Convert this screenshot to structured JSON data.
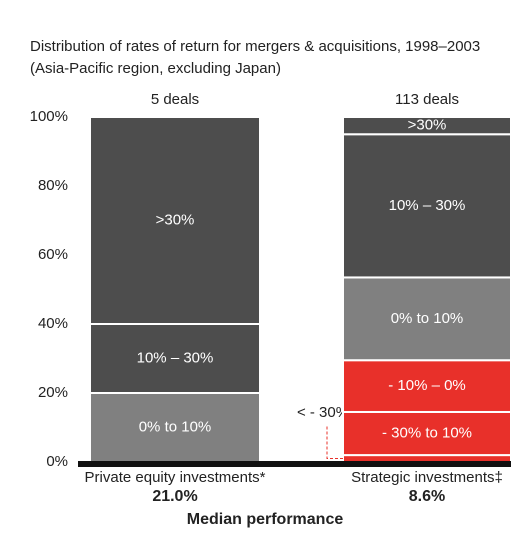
{
  "chart_data": {
    "type": "stacked_bar",
    "title": "Distribution of rates of return for mergers & acquisitions, 1998–2003 (Asia-Pacific region, excluding Japan)",
    "categories": [
      "Private equity investments*",
      "Strategic investments‡"
    ],
    "deal_labels": [
      "5 deals",
      "113 deals"
    ],
    "series": [
      {
        "name": "< - 30%",
        "color": "#e8302a",
        "values": [
          null,
          2
        ]
      },
      {
        "name": "- 30% to 10%",
        "color": "#e8302a",
        "values": [
          null,
          12.5
        ]
      },
      {
        "name": "- 10% – 0%",
        "color": "#e8302a",
        "values": [
          null,
          15
        ]
      },
      {
        "name": "0% to 10%",
        "color": "#808080",
        "values": [
          20,
          24
        ]
      },
      {
        "name": "10% – 30%",
        "color": "#4d4d4d",
        "values": [
          20,
          41.5
        ]
      },
      {
        "name": ">30%",
        "color": "#4d4d4d",
        "values": [
          60,
          5
        ]
      }
    ],
    "median_label": "Median performance",
    "medians": [
      21.0,
      8.6
    ],
    "median_labels": [
      "21.0%",
      "8.6%"
    ],
    "ylim": [
      0,
      100
    ],
    "yticks": [
      {
        "value": 0,
        "label": "0%"
      },
      {
        "value": 20,
        "label": "20%"
      },
      {
        "value": 40,
        "label": "40%"
      },
      {
        "value": 60,
        "label": "60%"
      },
      {
        "value": 80,
        "label": "80%"
      },
      {
        "value": 100,
        "label": "100%"
      }
    ]
  }
}
